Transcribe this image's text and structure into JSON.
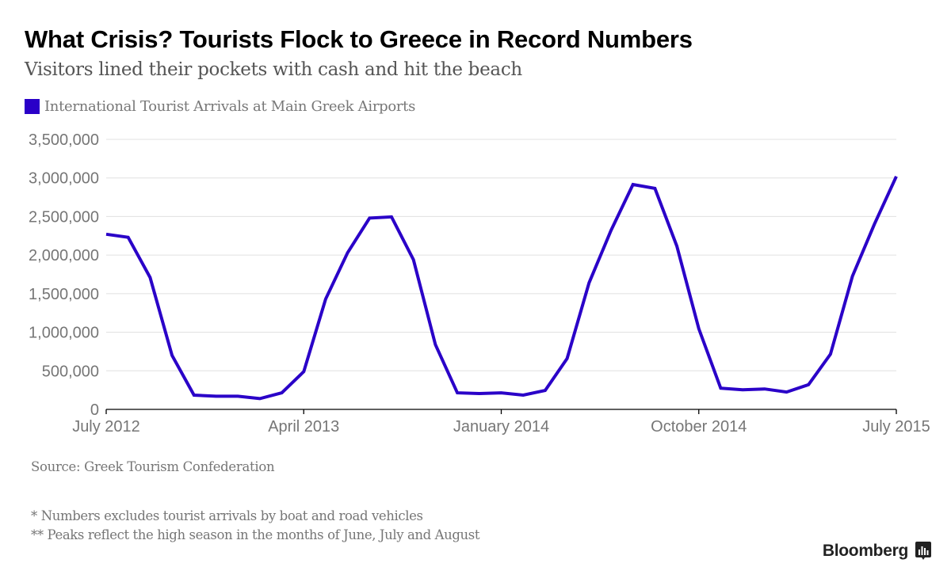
{
  "header": {
    "title": "What Crisis? Tourists Flock to Greece in Record Numbers",
    "subtitle": "Visitors lined their pockets with cash and hit the beach"
  },
  "legend": {
    "label": "International Tourist Arrivals at Main Greek Airports",
    "color": "#2a00c8"
  },
  "footer": {
    "source": "Source: Greek Tourism Confederation",
    "note1": "* Numbers excludes tourist arrivals by boat and road vehicles",
    "note2": "** Peaks reflect the high season in the months of June, July and August",
    "brand": "Bloomberg",
    "brand_icon": "bloomberg-chart-icon"
  },
  "chart_data": {
    "type": "line",
    "title": "What Crisis? Tourists Flock to Greece in Record Numbers",
    "subtitle": "Visitors lined their pockets with cash and hit the beach",
    "xlabel": "",
    "ylabel": "",
    "ylim": [
      0,
      3500000
    ],
    "yticks": [
      0,
      500000,
      1000000,
      1500000,
      2000000,
      2500000,
      3000000,
      3500000
    ],
    "ytick_labels": [
      "0",
      "500,000",
      "1,000,000",
      "1,500,000",
      "2,000,000",
      "2,500,000",
      "3,000,000",
      "3,500,000"
    ],
    "xtick_labels": [
      {
        "month_index": 0,
        "label": "July 2012"
      },
      {
        "month_index": 9,
        "label": "April 2013"
      },
      {
        "month_index": 18,
        "label": "January 2014"
      },
      {
        "month_index": 27,
        "label": "October 2014"
      },
      {
        "month_index": 36,
        "label": "July 2015"
      }
    ],
    "grid": true,
    "legend_position": "top-left",
    "x": [
      "2012-07",
      "2012-08",
      "2012-09",
      "2012-10",
      "2012-11",
      "2012-12",
      "2013-01",
      "2013-02",
      "2013-03",
      "2013-04",
      "2013-05",
      "2013-06",
      "2013-07",
      "2013-08",
      "2013-09",
      "2013-10",
      "2013-11",
      "2013-12",
      "2014-01",
      "2014-02",
      "2014-03",
      "2014-04",
      "2014-05",
      "2014-06",
      "2014-07",
      "2014-08",
      "2014-09",
      "2014-10",
      "2014-11",
      "2014-12",
      "2015-01",
      "2015-02",
      "2015-03",
      "2015-04",
      "2015-05",
      "2015-06",
      "2015-07"
    ],
    "series": [
      {
        "name": "International Tourist Arrivals at Main Greek Airports",
        "color": "#2a00c8",
        "values": [
          2270000,
          2230000,
          1710000,
          700000,
          185000,
          170000,
          170000,
          140000,
          215000,
          490000,
          1430000,
          2030000,
          2480000,
          2495000,
          1940000,
          840000,
          215000,
          205000,
          215000,
          185000,
          245000,
          660000,
          1640000,
          2320000,
          2915000,
          2865000,
          2115000,
          1045000,
          275000,
          255000,
          265000,
          225000,
          320000,
          715000,
          1725000,
          2400000,
          3020000
        ]
      }
    ]
  }
}
